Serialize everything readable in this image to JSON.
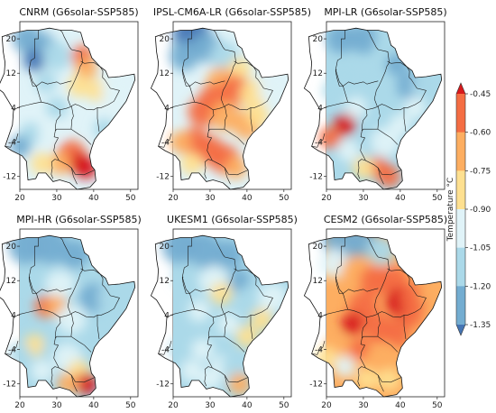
{
  "figure": {
    "panels": [
      {
        "id": "cnrm",
        "title": "CNRM (G6solar-SSP585)"
      },
      {
        "id": "ipsl",
        "title": "IPSL-CM6A-LR (G6solar-SSP585)"
      },
      {
        "id": "mpilr",
        "title": "MPI-LR (G6solar-SSP585)"
      },
      {
        "id": "mpihr",
        "title": "MPI-HR (G6solar-SSP585)"
      },
      {
        "id": "ukesm",
        "title": "UKESM1 (G6solar-SSP585)"
      },
      {
        "id": "cesm",
        "title": "CESM2 (G6solar-SSP585)"
      }
    ],
    "lon_ticks": [
      "20",
      "30",
      "40",
      "50"
    ],
    "lat_ticks": [
      "20",
      "12",
      "4",
      "-4",
      "-12"
    ],
    "lon_range": [
      20,
      52
    ],
    "lat_range": [
      -15,
      24
    ],
    "colorbar": {
      "label": "Temperature °C",
      "ticks": [
        "-0.45",
        "-0.60",
        "-0.75",
        "-0.90",
        "-1.05",
        "-1.20",
        "-1.35"
      ],
      "colors": [
        "#d7191c",
        "#f46d43",
        "#fdae61",
        "#fee090",
        "#e0f3f8",
        "#abd9e9",
        "#74add1",
        "#4575b4"
      ],
      "extend": "both"
    }
  }
}
